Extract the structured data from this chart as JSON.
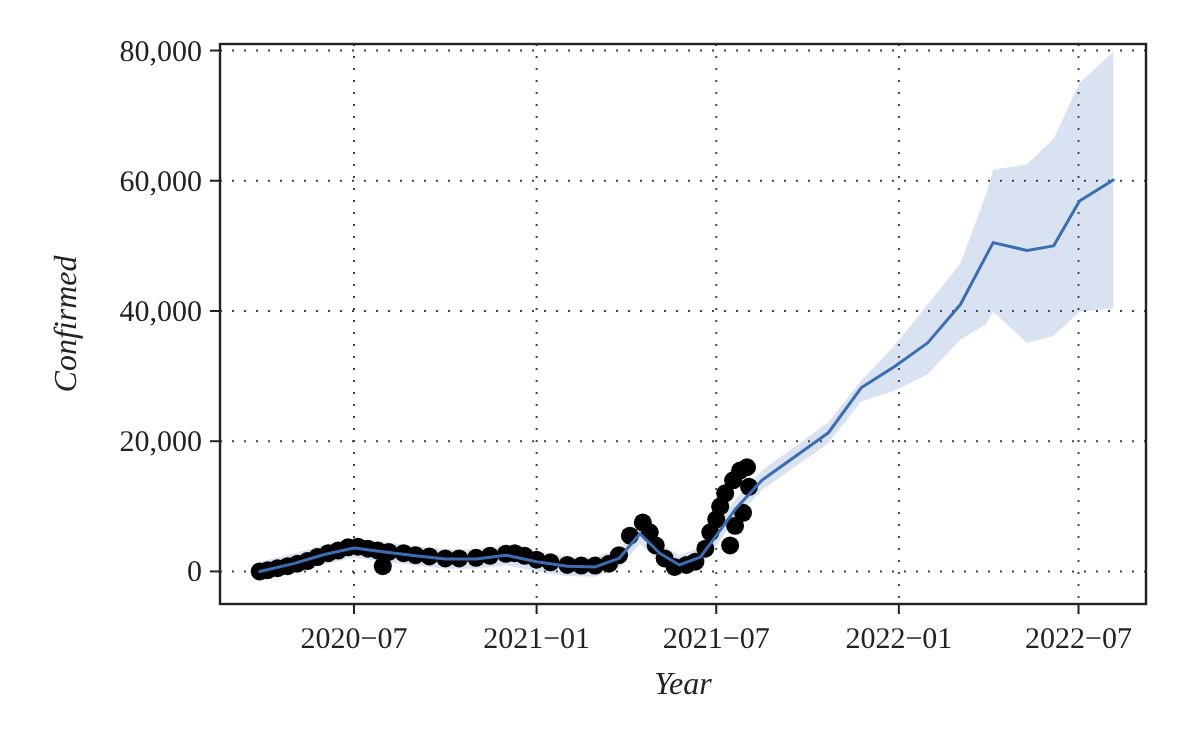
{
  "chart_data": {
    "type": "line",
    "xlabel": "Year",
    "ylabel": "Confirmed",
    "xlim": [
      "2020-02-17",
      "2022-09-07"
    ],
    "ylim": [
      -5000,
      81000
    ],
    "xticks": [
      {
        "value": "2020-07",
        "label": "2020−07"
      },
      {
        "value": "2021-01",
        "label": "2021−01"
      },
      {
        "value": "2021-07",
        "label": "2021−07"
      },
      {
        "value": "2022-01",
        "label": "2022−01"
      },
      {
        "value": "2022-07",
        "label": "2022−07"
      }
    ],
    "yticks": [
      0,
      {
        "value": 20000,
        "label": "20,000"
      },
      {
        "value": 40000,
        "label": "40,000"
      },
      {
        "value": 60000,
        "label": "60,000"
      },
      {
        "value": 80000,
        "label": "80,000"
      }
    ],
    "grid": true,
    "series": [
      {
        "color": "#3b6db3",
        "line_style": "solid",
        "marker": "none",
        "x": [
          "2020-03-28",
          "2020-05-01",
          "2020-06-01",
          "2020-07-01",
          "2020-08-01",
          "2020-09-01",
          "2020-10-01",
          "2020-11-01",
          "2020-12-01",
          "2021-01-01",
          "2021-02-01",
          "2021-03-01",
          "2021-03-25",
          "2021-04-15",
          "2021-05-05",
          "2021-05-25",
          "2021-06-15",
          "2021-07-01",
          "2021-07-20",
          "2021-08-16",
          "2021-10-22",
          "2021-11-24",
          "2021-12-27",
          "2022-01-30",
          "2022-03-04",
          "2022-03-30",
          "2022-04-06",
          "2022-05-10",
          "2022-06-06",
          "2022-07-02",
          "2022-08-05"
        ],
        "values": [
          0,
          1200,
          2600,
          3600,
          3000,
          2400,
          1900,
          1900,
          2500,
          1500,
          800,
          700,
          2000,
          5800,
          2800,
          1000,
          2200,
          5500,
          9500,
          14000,
          21300,
          28200,
          31400,
          35100,
          41000,
          48500,
          50500,
          49300,
          50000,
          56900,
          60100
        ],
        "lower": [
          -1500,
          -300,
          1100,
          2100,
          1500,
          900,
          400,
          400,
          1000,
          0,
          -700,
          -800,
          500,
          4300,
          1300,
          -500,
          700,
          4000,
          8000,
          12500,
          19700,
          26100,
          27700,
          30300,
          35600,
          38000,
          39900,
          35100,
          36200,
          39900,
          40400
        ],
        "upper": [
          1500,
          2700,
          4100,
          5100,
          4500,
          3900,
          3400,
          3400,
          4000,
          3000,
          2300,
          2200,
          3500,
          7300,
          4300,
          2500,
          3700,
          7000,
          11000,
          15500,
          22900,
          29300,
          34600,
          41000,
          47300,
          58000,
          61700,
          62500,
          66500,
          75000,
          79800
        ]
      },
      {
        "type": "scatter",
        "color": "#000000",
        "marker": "circle",
        "x": [
          "2020-03-28",
          "2020-04-05",
          "2020-04-15",
          "2020-04-25",
          "2020-05-05",
          "2020-05-15",
          "2020-05-25",
          "2020-06-05",
          "2020-06-15",
          "2020-06-25",
          "2020-07-05",
          "2020-07-15",
          "2020-07-25",
          "2020-07-30",
          "2020-08-05",
          "2020-08-20",
          "2020-09-01",
          "2020-09-15",
          "2020-10-01",
          "2020-10-15",
          "2020-11-01",
          "2020-11-15",
          "2020-12-01",
          "2020-12-10",
          "2020-12-20",
          "2021-01-01",
          "2021-01-15",
          "2021-02-01",
          "2021-02-15",
          "2021-03-01",
          "2021-03-15",
          "2021-03-25",
          "2021-04-05",
          "2021-04-18",
          "2021-04-25",
          "2021-05-01",
          "2021-05-10",
          "2021-05-20",
          "2021-06-01",
          "2021-06-10",
          "2021-06-20",
          "2021-06-25",
          "2021-07-01",
          "2021-07-05",
          "2021-07-10",
          "2021-07-15",
          "2021-07-18",
          "2021-07-20",
          "2021-07-25",
          "2021-07-28",
          "2021-08-01",
          "2021-08-03"
        ],
        "values": [
          0,
          200,
          500,
          800,
          1200,
          1600,
          2200,
          2800,
          3200,
          3700,
          3800,
          3500,
          3200,
          800,
          3000,
          2800,
          2500,
          2300,
          2000,
          2000,
          2100,
          2400,
          2700,
          2800,
          2400,
          1800,
          1400,
          1000,
          900,
          900,
          1200,
          2500,
          5500,
          7500,
          6000,
          4000,
          2000,
          700,
          1000,
          1500,
          3500,
          6000,
          8000,
          10000,
          12000,
          4000,
          14000,
          7000,
          15500,
          9000,
          16000,
          13000
        ]
      }
    ]
  }
}
